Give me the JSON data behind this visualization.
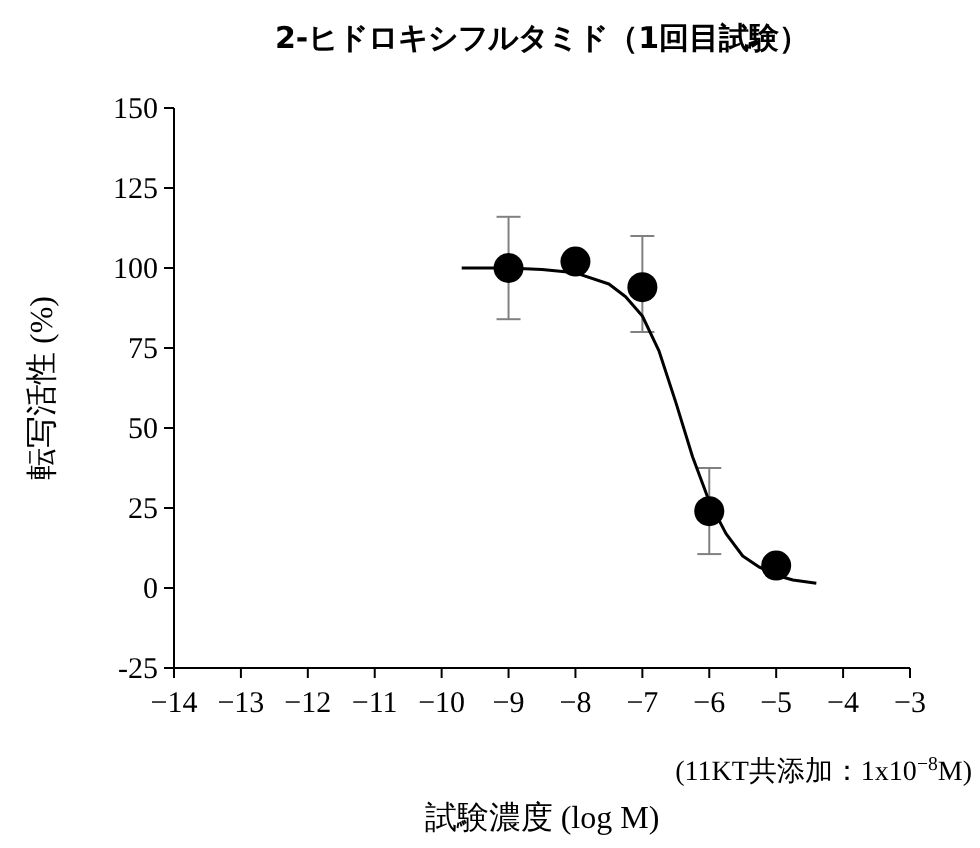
{
  "chart_data": {
    "type": "scatter",
    "title": "2-ヒドロキシフルタミド（1回目試験）",
    "xlabel": "試験濃度 (log M)",
    "ylabel": "転写活性 (%)",
    "annotations": [
      "(11KT共添加：1x10$^{−8}$M)"
    ],
    "xlim": [
      -14,
      -3
    ],
    "ylim": [
      -25,
      150
    ],
    "xticks": [
      {
        "value": -14,
        "label": "−14"
      },
      {
        "value": -13,
        "label": "−13"
      },
      {
        "value": -12,
        "label": "−12"
      },
      {
        "value": -11,
        "label": "−11"
      },
      {
        "value": -10,
        "label": "−10"
      },
      {
        "value": -9,
        "label": "−9"
      },
      {
        "value": -8,
        "label": "−8"
      },
      {
        "value": -7,
        "label": "−7"
      },
      {
        "value": -6,
        "label": "−6"
      },
      {
        "value": -5,
        "label": "−5"
      },
      {
        "value": -4,
        "label": "−4"
      },
      {
        "value": -3,
        "label": "−3"
      }
    ],
    "yticks": [
      {
        "value": -25,
        "label": "-25"
      },
      0,
      25,
      50,
      75,
      100,
      125,
      150
    ],
    "grid": false,
    "series": [
      {
        "type": "scatter",
        "color": "#000000",
        "marker": "circle",
        "x": [
          -9,
          -8,
          -7,
          -6,
          -5
        ],
        "values": [
          100,
          102,
          94,
          24,
          7
        ],
        "errors": [
          [
            84,
            116
          ],
          null,
          [
            80,
            110
          ],
          [
            10.6,
            37.5
          ],
          null
        ]
      },
      {
        "type": "line",
        "color": "#000000",
        "marker": "none",
        "line_style": "solid",
        "x": [
          -9.7,
          -9,
          -8.5,
          -8,
          -7.5,
          -7.25,
          -7,
          -6.75,
          -6.5,
          -6.25,
          -6,
          -5.75,
          -5.5,
          -5.25,
          -5,
          -4.75,
          -4.4
        ],
        "values": [
          100,
          100,
          99.5,
          98.5,
          95,
          91,
          85,
          74,
          58,
          41,
          27,
          17,
          10,
          6.5,
          4,
          2.5,
          1.5
        ]
      }
    ]
  }
}
